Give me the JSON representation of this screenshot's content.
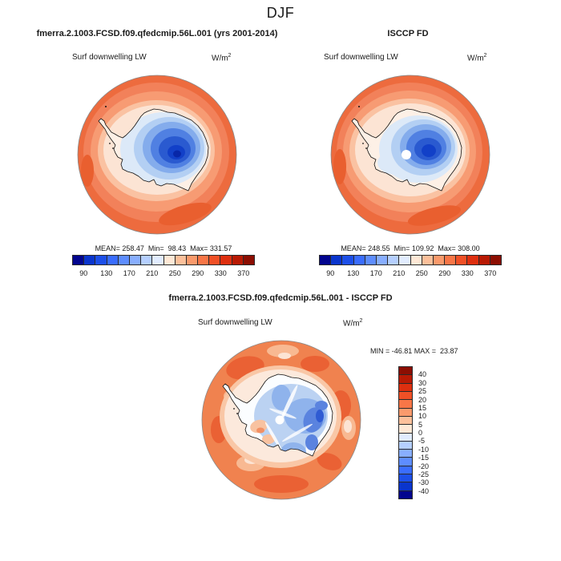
{
  "title": "DJF",
  "palette16": [
    "#02058E",
    "#0A35CD",
    "#1D4FE8",
    "#3A6DFF",
    "#5E8DFF",
    "#88AEFF",
    "#B5CFFF",
    "#E1ECFF",
    "#FEE8D6",
    "#FCC09B",
    "#FA9A6C",
    "#F87647",
    "#F05026",
    "#DE2F0F",
    "#B81A04",
    "#8C0E02"
  ],
  "panels": {
    "model": {
      "title": "fmerra.2.1003.FCSD.f09.qfedcmip.56L.001 (yrs 2001-2014)",
      "field": "Surf downwelling LW",
      "units_base": "W/m",
      "units_exp": "2",
      "stats": "MEAN= 258.47  Min=  98.43  Max= 331.57",
      "colorbar": {
        "labels": [
          "90",
          "130",
          "170",
          "210",
          "250",
          "290",
          "330",
          "370"
        ],
        "boundaries": [
          1,
          3,
          5,
          7,
          9,
          11,
          13,
          15
        ]
      }
    },
    "obs": {
      "title": "ISCCP FD",
      "field": "Surf downwelling LW",
      "units_base": "W/m",
      "units_exp": "2",
      "stats": "MEAN= 248.55  Min= 109.92  Max= 308.00",
      "colorbar": {
        "labels": [
          "90",
          "130",
          "170",
          "210",
          "250",
          "290",
          "330",
          "370"
        ],
        "boundaries": [
          1,
          3,
          5,
          7,
          9,
          11,
          13,
          15
        ]
      }
    },
    "diff": {
      "title": "fmerra.2.1003.FCSD.f09.qfedcmip.56L.001 - ISCCP FD",
      "field": "Surf downwelling LW",
      "units_base": "W/m",
      "units_exp": "2",
      "stats": "MIN = -46.81 MAX =  23.87",
      "colorbar": {
        "labels": [
          "40",
          "30",
          "25",
          "20",
          "15",
          "10",
          "5",
          "0",
          "-5",
          "-10",
          "-15",
          "-20",
          "-25",
          "-30",
          "-40"
        ],
        "boundaries": [
          1,
          2,
          3,
          4,
          5,
          6,
          7,
          8,
          9,
          10,
          11,
          12,
          13,
          14,
          15
        ]
      }
    }
  },
  "chart_data": [
    {
      "type": "heatmap",
      "panel": "top-left",
      "title": "fmerra.2.1003.FCSD.f09.qfedcmip.56L.001 (yrs 2001-2014)",
      "season": "DJF",
      "variable": "Surf downwelling LW",
      "units": "W/m^2",
      "projection": "south polar stereographic (Antarctica)",
      "mean": 258.47,
      "min": 98.43,
      "max": 331.57,
      "contour_levels": [
        90,
        110,
        130,
        150,
        170,
        190,
        210,
        230,
        250,
        290,
        310,
        330,
        350,
        370
      ],
      "colorbar_tick_labels": [
        90,
        130,
        170,
        210,
        250,
        290,
        330,
        370
      ],
      "legend_position": "horizontal bar below map",
      "palette": "16-class blue-white-red diverging",
      "pattern": "Antarctic interior deep blue (~100-170), coastal ring pale (~230-260), surrounding ocean orange (~270-310)"
    },
    {
      "type": "heatmap",
      "panel": "top-right",
      "title": "ISCCP FD",
      "season": "DJF",
      "variable": "Surf downwelling LW",
      "units": "W/m^2",
      "projection": "south polar stereographic (Antarctica)",
      "mean": 248.55,
      "min": 109.92,
      "max": 308.0,
      "contour_levels": [
        90,
        110,
        130,
        150,
        170,
        190,
        210,
        230,
        250,
        290,
        310,
        330,
        350,
        370
      ],
      "colorbar_tick_labels": [
        90,
        130,
        170,
        210,
        250,
        290,
        330,
        370
      ],
      "legend_position": "horizontal bar below map",
      "palette": "16-class blue-white-red diverging",
      "pattern": "same spatial pattern as model with white data-void dot at the pole"
    },
    {
      "type": "heatmap",
      "panel": "bottom-center",
      "title": "fmerra.2.1003.FCSD.f09.qfedcmip.56L.001 - ISCCP FD",
      "season": "DJF",
      "variable": "Surf downwelling LW",
      "units": "W/m^2",
      "projection": "south polar stereographic (Antarctica)",
      "min": -46.81,
      "max": 23.87,
      "contour_levels": [
        -40,
        -30,
        -25,
        -20,
        -15,
        -10,
        -5,
        0,
        5,
        10,
        15,
        20,
        25,
        30,
        40
      ],
      "colorbar_tick_labels": [
        40,
        30,
        25,
        20,
        15,
        10,
        5,
        0,
        -5,
        -10,
        -15,
        -20,
        -25,
        -30,
        -40
      ],
      "legend_position": "vertical bar right of map, red positive on top",
      "palette": "16-class blue-white-red diverging",
      "pattern": "ocean mottled orange (+5 to +20), continent streaky blue (-5 to -30) with white pole hole"
    }
  ]
}
